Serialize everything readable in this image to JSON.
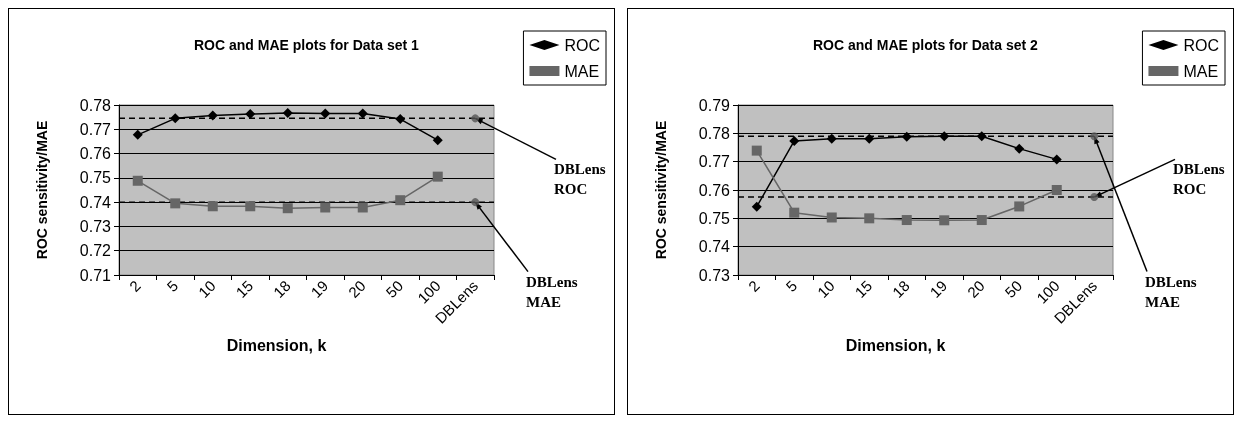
{
  "chart_data": [
    {
      "type": "line",
      "title": "ROC and MAE plots for Data set 1",
      "xlabel": "Dimension, k",
      "ylabel": "ROC sensitivity/MAE",
      "categories": [
        "2",
        "5",
        "10",
        "15",
        "18",
        "19",
        "20",
        "50",
        "100",
        "DBLens"
      ],
      "series": [
        {
          "name": "ROC",
          "color": "#000000",
          "marker": "diamond",
          "values": [
            0.7677,
            0.7745,
            0.7757,
            0.7763,
            0.7767,
            0.7765,
            0.7765,
            0.7742,
            0.7655,
            null
          ]
        },
        {
          "name": "MAE",
          "color": "#666666",
          "marker": "square",
          "values": [
            0.7488,
            0.7395,
            0.7383,
            0.7383,
            0.7375,
            0.7378,
            0.7378,
            0.7408,
            0.7505,
            null
          ]
        },
        {
          "type": "scatter",
          "color": "#555555",
          "marker": "circle",
          "values": [
            null,
            null,
            null,
            null,
            null,
            null,
            null,
            null,
            null,
            0.7745
          ]
        },
        {
          "type": "scatter",
          "color": "#555555",
          "marker": "circle",
          "values": [
            null,
            null,
            null,
            null,
            null,
            null,
            null,
            null,
            null,
            0.74
          ]
        }
      ],
      "ylim": [
        0.71,
        0.78
      ],
      "yticks": [
        0.71,
        0.72,
        0.73,
        0.74,
        0.75,
        0.76,
        0.77,
        0.78
      ],
      "ref_lines": [
        {
          "axis": "y",
          "value": 0.7745,
          "color": "#000000",
          "line_style": "dashed"
        },
        {
          "axis": "y",
          "value": 0.74,
          "color": "#000000",
          "line_style": "dashed"
        }
      ],
      "annotations": [
        {
          "text": "DBLens ROC",
          "x": "DBLens",
          "y": 0.7745
        },
        {
          "text": "DBLens MAE",
          "x": "DBLens",
          "y": 0.74
        }
      ],
      "grid": "y",
      "legend": "top right"
    },
    {
      "type": "line",
      "title": "ROC and MAE plots for Data set 2",
      "xlabel": "Dimension, k",
      "ylabel": "ROC sensitivity/MAE",
      "categories": [
        "2",
        "5",
        "10",
        "15",
        "18",
        "19",
        "20",
        "50",
        "100",
        "DBLens"
      ],
      "series": [
        {
          "name": "ROC",
          "color": "#000000",
          "marker": "diamond",
          "values": [
            0.7541,
            0.7773,
            0.7781,
            0.7781,
            0.7788,
            0.779,
            0.779,
            0.7746,
            0.7708,
            null
          ]
        },
        {
          "name": "MAE",
          "color": "#666666",
          "marker": "square",
          "values": [
            0.7739,
            0.752,
            0.7503,
            0.75,
            0.7494,
            0.7493,
            0.7494,
            0.7542,
            0.76,
            null
          ]
        },
        {
          "type": "scatter",
          "color": "#555555",
          "marker": "circle",
          "values": [
            null,
            null,
            null,
            null,
            null,
            null,
            null,
            null,
            null,
            0.779
          ]
        },
        {
          "type": "scatter",
          "color": "#555555",
          "marker": "circle",
          "values": [
            null,
            null,
            null,
            null,
            null,
            null,
            null,
            null,
            null,
            0.7575
          ]
        }
      ],
      "ylim": [
        0.73,
        0.79
      ],
      "yticks": [
        0.73,
        0.74,
        0.75,
        0.76,
        0.77,
        0.78,
        0.79
      ],
      "ref_lines": [
        {
          "axis": "y",
          "value": 0.779,
          "color": "#000000",
          "line_style": "dashed"
        },
        {
          "axis": "y",
          "value": 0.7575,
          "color": "#000000",
          "line_style": "dashed"
        }
      ],
      "annotations": [
        {
          "text": "DBLens ROC",
          "x": "DBLens",
          "y": 0.7575
        },
        {
          "text": "DBLens MAE",
          "x": "DBLens",
          "y": 0.779
        }
      ],
      "grid": "y",
      "legend": "top right"
    }
  ]
}
